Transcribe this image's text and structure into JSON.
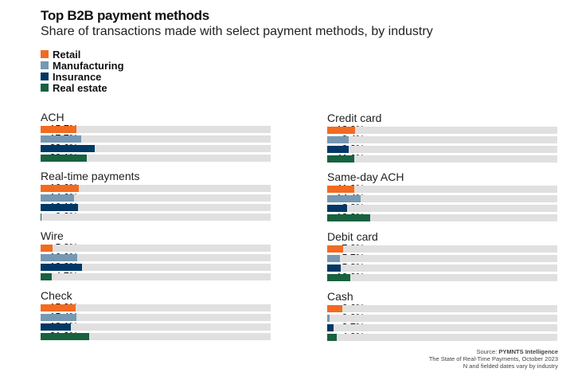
{
  "chart_data": {
    "type": "bar",
    "orientation": "horizontal",
    "title": "Top B2B payment methods",
    "subtitle": "Share of transactions made with select payment methods, by industry",
    "xlim": [
      0,
      100
    ],
    "unit": "%",
    "legend": [
      {
        "name": "Retail",
        "color": "#f26b21"
      },
      {
        "name": "Manufacturing",
        "color": "#7698b3"
      },
      {
        "name": "Insurance",
        "color": "#003865"
      },
      {
        "name": "Real estate",
        "color": "#17623f"
      }
    ],
    "legend_placement": "top-left",
    "track_color": "#e0e0e0",
    "panels": [
      {
        "name": "ACH",
        "values": [
          15.7,
          17.7,
          23.6,
          20.1
        ]
      },
      {
        "name": "Real-time payments",
        "values": [
          16.6,
          14.6,
          16.1,
          0.2
        ]
      },
      {
        "name": "Wire",
        "values": [
          5.3,
          16.0,
          18.0,
          4.7
        ]
      },
      {
        "name": "Check",
        "values": [
          15.2,
          15.4,
          13.1,
          21.2
        ]
      },
      {
        "name": "Credit card",
        "values": [
          12.0,
          9.4,
          9.2,
          11.6
        ]
      },
      {
        "name": "Same-day ACH",
        "values": [
          11.9,
          14.4,
          8.8,
          18.8
        ]
      },
      {
        "name": "Debit card",
        "values": [
          7.0,
          5.7,
          5.8,
          10.0
        ]
      },
      {
        "name": "Cash",
        "values": [
          6.6,
          0.9,
          2.7,
          4.0
        ]
      }
    ]
  },
  "source": {
    "label": "Source: ",
    "org": "PYMNTS Intelligence",
    "line2": "The State of Real-Time Payments, October 2023",
    "line3": "N and fielded dates vary by industry"
  }
}
